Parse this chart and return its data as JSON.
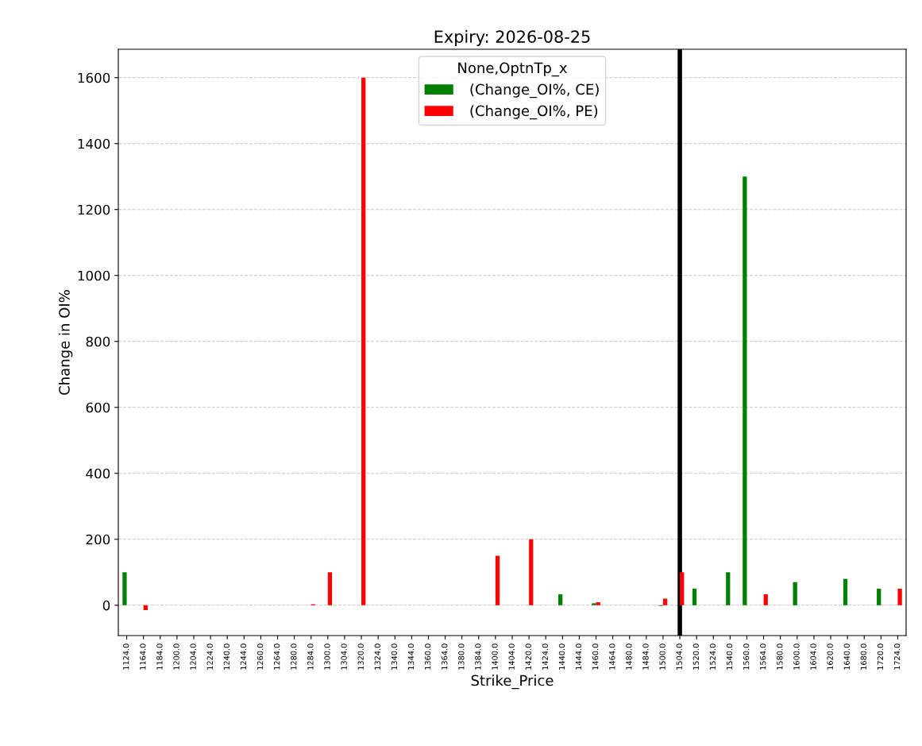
{
  "chart_data": {
    "type": "bar",
    "title": "Expiry: 2026-08-25",
    "xlabel": "Strike_Price",
    "ylabel": "Change in OI%",
    "legend_title": "None,OptnTp_x",
    "categories": [
      "1124.0",
      "1164.0",
      "1184.0",
      "1200.0",
      "1204.0",
      "1224.0",
      "1240.0",
      "1244.0",
      "1260.0",
      "1264.0",
      "1280.0",
      "1284.0",
      "1300.0",
      "1304.0",
      "1320.0",
      "1324.0",
      "1340.0",
      "1344.0",
      "1360.0",
      "1364.0",
      "1380.0",
      "1384.0",
      "1400.0",
      "1404.0",
      "1420.0",
      "1424.0",
      "1440.0",
      "1444.0",
      "1460.0",
      "1464.0",
      "1480.0",
      "1484.0",
      "1500.0",
      "1504.0",
      "1520.0",
      "1524.0",
      "1540.0",
      "1560.0",
      "1564.0",
      "1580.0",
      "1600.0",
      "1604.0",
      "1620.0",
      "1640.0",
      "1680.0",
      "1720.0",
      "1724.0"
    ],
    "series": [
      {
        "name": " (Change_OI%, CE)",
        "color": "#008000",
        "values": [
          100,
          null,
          null,
          null,
          null,
          null,
          null,
          null,
          null,
          null,
          null,
          null,
          null,
          null,
          null,
          null,
          null,
          null,
          null,
          null,
          null,
          null,
          null,
          null,
          null,
          null,
          33,
          null,
          6,
          null,
          null,
          null,
          -2,
          null,
          50,
          null,
          100,
          1300,
          null,
          null,
          70,
          null,
          null,
          80,
          null,
          50,
          null
        ]
      },
      {
        "name": " (Change_OI%, PE)",
        "color": "#ff0000",
        "values": [
          null,
          -15,
          null,
          null,
          null,
          null,
          null,
          null,
          null,
          null,
          null,
          3,
          100,
          null,
          1600,
          null,
          null,
          null,
          null,
          null,
          null,
          null,
          150,
          null,
          200,
          null,
          null,
          null,
          9,
          null,
          null,
          null,
          20,
          100,
          null,
          null,
          null,
          null,
          33,
          null,
          null,
          null,
          null,
          null,
          null,
          null,
          50
        ]
      }
    ],
    "ylim": [
      -92,
      1686
    ],
    "yticks": [
      0,
      200,
      400,
      600,
      800,
      1000,
      1200,
      1400,
      1600
    ],
    "ref_lines": [
      {
        "axis": "x",
        "value": "1504.0",
        "color": "#000000",
        "line_style": "solid"
      }
    ],
    "grid": "y",
    "legend": "top"
  }
}
